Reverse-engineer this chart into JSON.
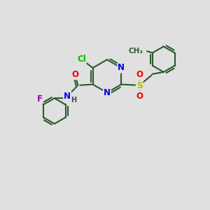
{
  "bg_color": "#e0e0e0",
  "bond_color": "#2a5a2a",
  "bond_width": 1.5,
  "atom_colors": {
    "C": "#2a5a2a",
    "N": "#0000ee",
    "O": "#ee0000",
    "S": "#bbbb00",
    "Cl": "#00bb00",
    "F": "#9900bb",
    "H": "#444444"
  },
  "figsize": [
    3.0,
    3.0
  ],
  "dpi": 100
}
